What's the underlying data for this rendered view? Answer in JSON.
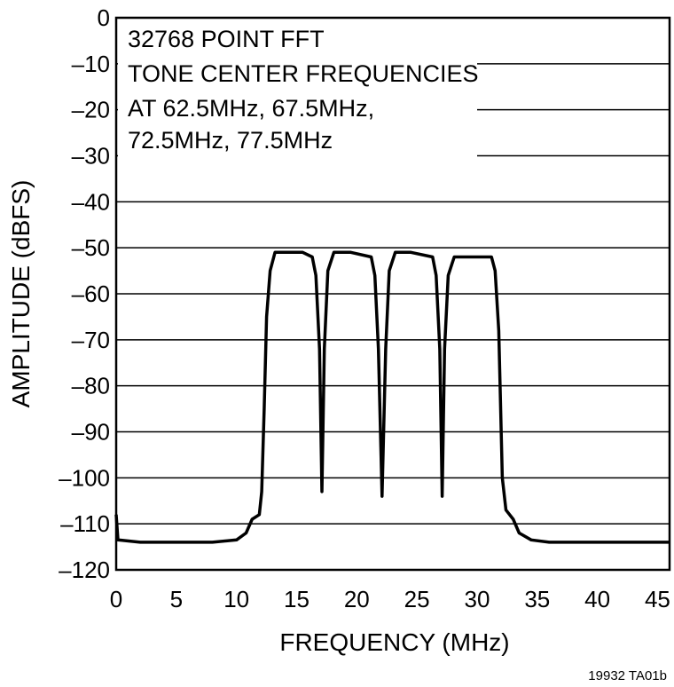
{
  "chart_data": {
    "type": "line",
    "xlabel": "FREQUENCY (MHz)",
    "ylabel": "AMPLITUDE (dBFS)",
    "xlim": [
      0,
      46
    ],
    "ylim": [
      -120,
      0
    ],
    "x_ticks": [
      0,
      5,
      10,
      15,
      20,
      25,
      30,
      35,
      40,
      45
    ],
    "x_tick_labels": [
      "0",
      "5",
      "10",
      "15",
      "20",
      "25",
      "30",
      "35",
      "40",
      "45"
    ],
    "y_ticks": [
      0,
      -10,
      -20,
      -30,
      -40,
      -50,
      -60,
      -70,
      -80,
      -90,
      -100,
      -110,
      -120
    ],
    "y_tick_labels": [
      "0",
      "–10",
      "–20",
      "–30",
      "–40",
      "–50",
      "–60",
      "–70",
      "–80",
      "–90",
      "–100",
      "–110",
      "–120"
    ],
    "grid": "horizontal",
    "annotation": [
      "32768 POINT FFT",
      "TONE CENTER FREQUENCIES",
      "AT 62.5MHz, 67.5MHz,",
      "72.5MHz, 77.5MHz"
    ],
    "figure_id": "19932 TA01b",
    "series": [
      {
        "color": "#000000",
        "points": [
          [
            0,
            -108
          ],
          [
            0.15,
            -113.5
          ],
          [
            2,
            -114
          ],
          [
            4,
            -114
          ],
          [
            6,
            -114
          ],
          [
            8,
            -114
          ],
          [
            10,
            -113.5
          ],
          [
            10.8,
            -112
          ],
          [
            11.3,
            -109
          ],
          [
            11.9,
            -108
          ],
          [
            12.1,
            -103
          ],
          [
            12.3,
            -85
          ],
          [
            12.5,
            -65
          ],
          [
            12.8,
            -55
          ],
          [
            13.2,
            -51
          ],
          [
            14,
            -51
          ],
          [
            15.5,
            -51
          ],
          [
            16.3,
            -52
          ],
          [
            16.6,
            -56
          ],
          [
            16.9,
            -72
          ],
          [
            17.1,
            -103
          ],
          [
            17.3,
            -72
          ],
          [
            17.6,
            -55
          ],
          [
            18.1,
            -51
          ],
          [
            19.5,
            -51
          ],
          [
            21.2,
            -52
          ],
          [
            21.5,
            -56
          ],
          [
            21.8,
            -72
          ],
          [
            22.1,
            -104
          ],
          [
            22.4,
            -72
          ],
          [
            22.7,
            -55
          ],
          [
            23.2,
            -51
          ],
          [
            24.5,
            -51
          ],
          [
            26.3,
            -52
          ],
          [
            26.6,
            -56
          ],
          [
            26.9,
            -72
          ],
          [
            27.1,
            -104
          ],
          [
            27.3,
            -72
          ],
          [
            27.6,
            -56
          ],
          [
            28.1,
            -52
          ],
          [
            29.5,
            -52
          ],
          [
            31.2,
            -52
          ],
          [
            31.5,
            -55
          ],
          [
            31.8,
            -68
          ],
          [
            32.1,
            -100
          ],
          [
            32.4,
            -107
          ],
          [
            33,
            -109
          ],
          [
            33.5,
            -112
          ],
          [
            34.5,
            -113.5
          ],
          [
            36,
            -114
          ],
          [
            38,
            -114
          ],
          [
            40,
            -114
          ],
          [
            42,
            -114
          ],
          [
            44,
            -114
          ],
          [
            46,
            -114
          ]
        ]
      }
    ]
  }
}
